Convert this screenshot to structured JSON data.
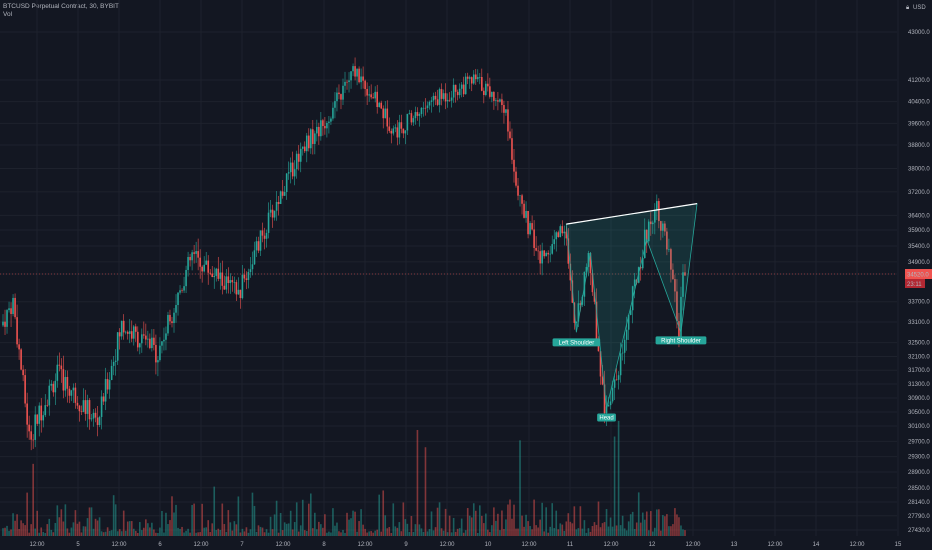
{
  "legend": {
    "symbol_line": "BTCUSD Perpetual Contract, 30, BYBIT",
    "volume_label": "Vol"
  },
  "axis": {
    "currency": "USD",
    "currency_icon": "lock-icon"
  },
  "colors": {
    "background": "#131722",
    "up": "#26a69a",
    "down": "#ef5350",
    "trendline": "#ffffff",
    "pattern_fill": "#26a69a",
    "label_bg": "#26a69a",
    "price_line": "#ef5350"
  },
  "chart_data": {
    "type": "candlestick",
    "title": "BTCUSD Perpetual Contract, 30, BYBIT",
    "y_axis": {
      "ticks": [
        43000,
        41200,
        40400,
        39600,
        38800,
        38000,
        37200,
        36400,
        35900,
        35400,
        34900,
        34520,
        33700,
        33100,
        32500,
        32100,
        31700,
        31300,
        30900,
        30500,
        30100,
        29700,
        29300,
        28900,
        28500,
        28140,
        27790,
        27430
      ],
      "tick_labels": [
        "43000.0",
        "41200.0",
        "40400.0",
        "39600.0",
        "38800.0",
        "38000.0",
        "37200.0",
        "36400.0",
        "35900.0",
        "35400.0",
        "34900.0",
        "34520.0",
        "33700.0",
        "33100.0",
        "32500.0",
        "32100.0",
        "31700.0",
        "31300.0",
        "30900.0",
        "30500.0",
        "30100.0",
        "29700.0",
        "29300.0",
        "28900.0",
        "28500.0",
        "28140.0",
        "27790.0",
        "27430.0"
      ],
      "last_price": "34520.0",
      "countdown": "23:11"
    },
    "x_axis": {
      "ticks": [
        "12:00",
        "5",
        "12:00",
        "6",
        "12:00",
        "7",
        "12:00",
        "8",
        "12:00",
        "9",
        "12:00",
        "10",
        "12:00",
        "11",
        "12:00",
        "12",
        "12:00",
        "13",
        "12:00",
        "14",
        "12:00",
        "15"
      ]
    },
    "pattern": {
      "name": "head and shoulders",
      "labels": [
        "Left Shoulder",
        "Head",
        "Right Shoulder"
      ]
    },
    "key_points": [
      {
        "label": "start",
        "price": 33000
      },
      {
        "label": "peak",
        "price": 41600
      },
      {
        "label": "neckline left",
        "price": 36100
      },
      {
        "label": "Left Shoulder",
        "price": 32800
      },
      {
        "label": "Head",
        "price": 30600
      },
      {
        "label": "Right Shoulder",
        "price": 32800
      },
      {
        "label": "neckline right",
        "price": 36800
      },
      {
        "label": "last",
        "price": 34520
      }
    ],
    "series_note": "30-minute candles with volume histogram"
  }
}
